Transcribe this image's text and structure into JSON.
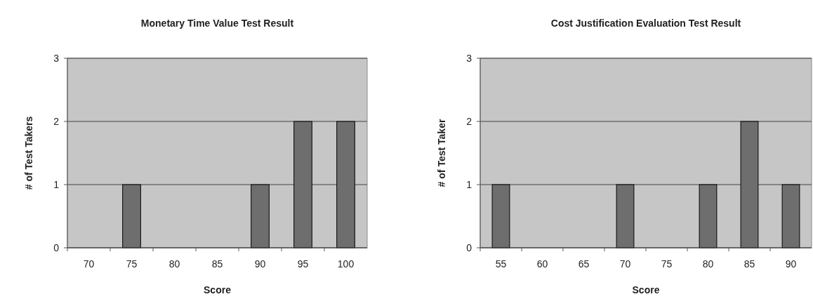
{
  "chart_data": [
    {
      "type": "bar",
      "title": "Monetary Time Value Test Result",
      "xlabel": "Score",
      "ylabel": "# of Test Takers",
      "categories": [
        "70",
        "75",
        "80",
        "85",
        "90",
        "95",
        "100"
      ],
      "values": [
        0,
        1,
        0,
        0,
        1,
        2,
        2
      ],
      "color": "#6e6e6e",
      "ylim": [
        0,
        3
      ],
      "yticks": [
        0,
        1,
        2,
        3
      ],
      "grid": "y"
    },
    {
      "type": "bar",
      "title": "Cost Justification Evaluation Test Result",
      "xlabel": "Score",
      "ylabel": "# of Test Taker",
      "categories": [
        "55",
        "60",
        "65",
        "70",
        "75",
        "80",
        "85",
        "90"
      ],
      "values": [
        1,
        0,
        0,
        1,
        0,
        1,
        2,
        1
      ],
      "color": "#6e6e6e",
      "ylim": [
        0,
        3
      ],
      "yticks": [
        0,
        1,
        2,
        3
      ],
      "grid": "y"
    }
  ]
}
